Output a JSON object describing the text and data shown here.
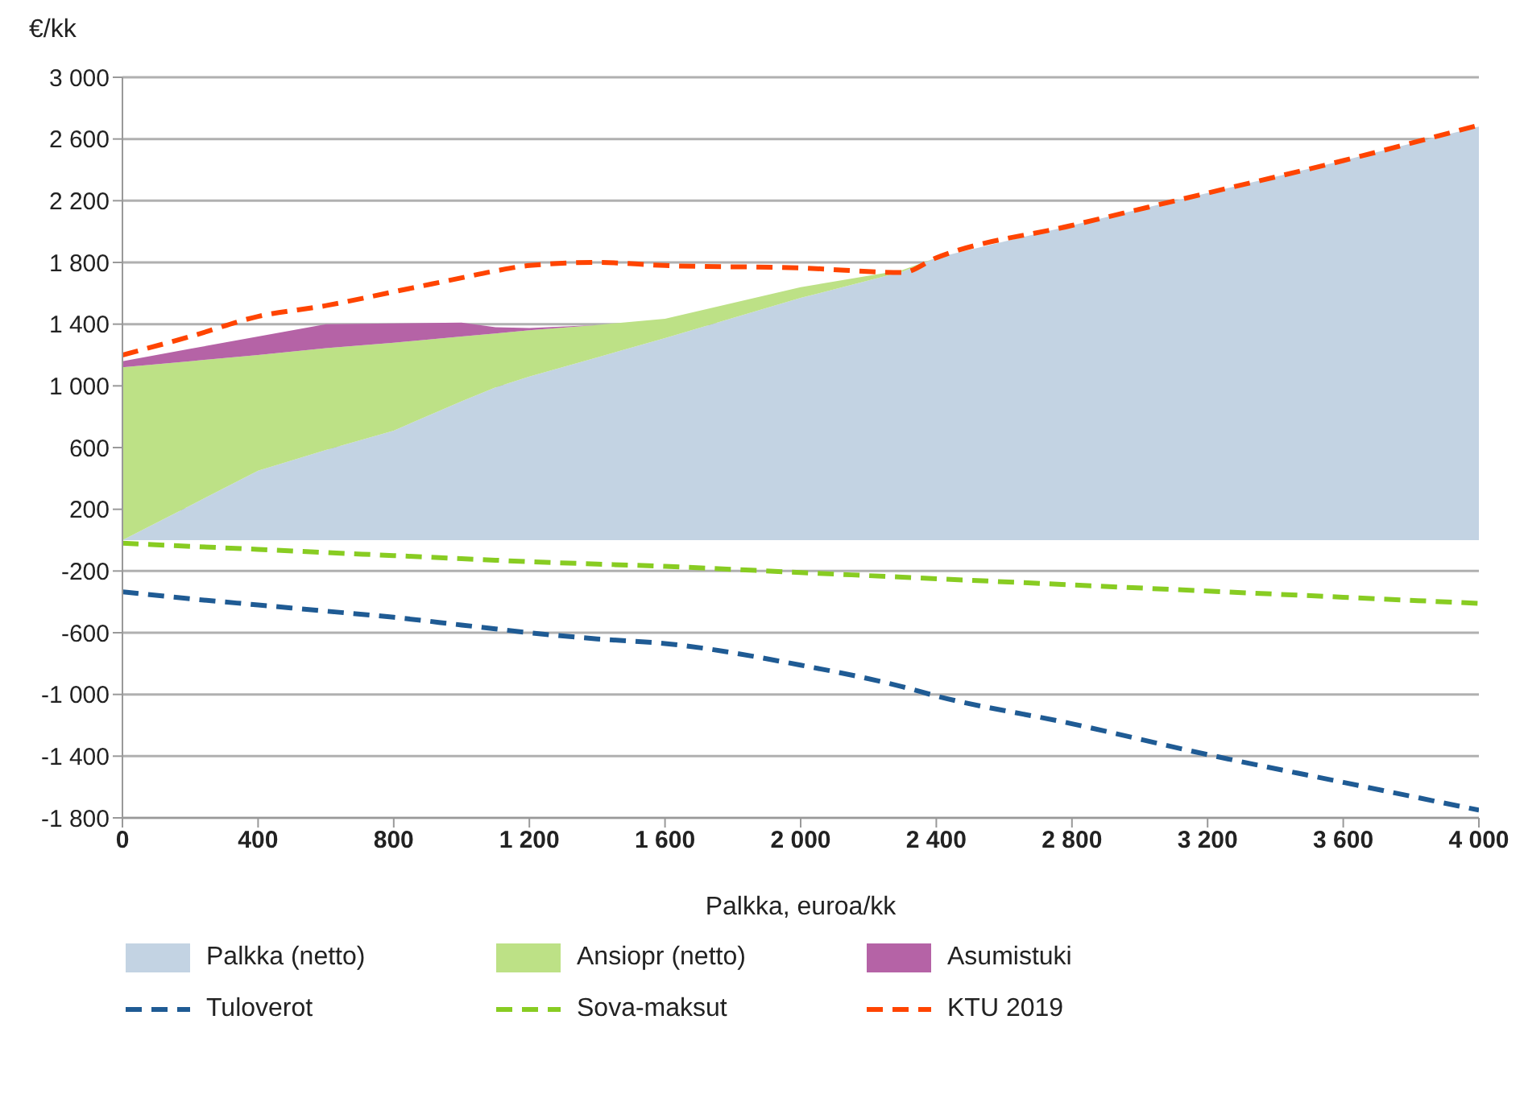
{
  "chart_data": {
    "type": "area",
    "ylabel": "€/kk",
    "xlabel": "Palkka, euroa/kk",
    "stacked": true,
    "grid": "y",
    "legend": "bottom",
    "x": [
      0,
      200,
      400,
      600,
      800,
      1000,
      1100,
      1200,
      1400,
      1600,
      2000,
      2300,
      2400,
      2800,
      3200,
      3600,
      4000
    ],
    "series": [
      {
        "name": "Palkka (netto)",
        "color": "#c3d3e3",
        "values": [
          0,
          225,
          450,
          585,
          710,
          900,
          990,
          1060,
          1185,
          1310,
          1570,
          1740,
          1830,
          2040,
          2250,
          2460,
          2680
        ]
      },
      {
        "name": "Ansiopr (netto)",
        "color": "#bde186",
        "values": [
          1120,
          935,
          750,
          660,
          570,
          420,
          350,
          300,
          210,
          125,
          70,
          10,
          0,
          null,
          null,
          null,
          null
        ]
      },
      {
        "name": "Asumistuki",
        "color": "#b563a6",
        "values": [
          40,
          80,
          120,
          155,
          125,
          90,
          40,
          15,
          0,
          null,
          null,
          null,
          null,
          null,
          null,
          null,
          null
        ]
      },
      {
        "name": "Tuloverot",
        "type": "line",
        "line_style": "dashed",
        "color": "#1f5b94",
        "values": [
          -335,
          -380,
          -420,
          -460,
          -500,
          -550,
          -575,
          -600,
          -640,
          -670,
          -810,
          -950,
          -1010,
          -1190,
          -1390,
          -1570,
          -1750
        ]
      },
      {
        "name": "Sova-maksut",
        "type": "line",
        "line_style": "dashed",
        "color": "#88cc22",
        "values": [
          -20,
          -40,
          -60,
          -80,
          -100,
          -120,
          -130,
          -140,
          -155,
          -170,
          -210,
          -240,
          -250,
          -290,
          -330,
          -370,
          -410
        ]
      },
      {
        "name": "KTU 2019",
        "type": "line",
        "line_style": "dashed",
        "color": "#ff4400",
        "values": [
          1200,
          1320,
          1450,
          1520,
          1610,
          1700,
          1745,
          1780,
          1800,
          1780,
          1764,
          1735,
          1830,
          2040,
          2250,
          2460,
          2690
        ]
      }
    ],
    "xlim": [
      0,
      4000
    ],
    "xticks": [
      0,
      400,
      800,
      {
        "value": 1200,
        "label": "1 200"
      },
      {
        "value": 1600,
        "label": "1 600"
      },
      {
        "value": 2000,
        "label": "2 000"
      },
      {
        "value": 2400,
        "label": "2 400"
      },
      {
        "value": 2800,
        "label": "2 800"
      },
      {
        "value": 3200,
        "label": "3 200"
      },
      {
        "value": 3600,
        "label": "3 600"
      },
      {
        "value": 4000,
        "label": "4 000"
      }
    ],
    "ylim": [
      -1800,
      3000
    ],
    "yticks": [
      {
        "value": -1800,
        "label": "-1 800"
      },
      {
        "value": -1400,
        "label": "-1 400"
      },
      {
        "value": -1000,
        "label": "-1 000"
      },
      -600,
      -200,
      200,
      600,
      {
        "value": 1000,
        "label": "1 000"
      },
      {
        "value": 1400,
        "label": "1 400"
      },
      {
        "value": 1800,
        "label": "1 800"
      },
      {
        "value": 2200,
        "label": "2 200"
      },
      {
        "value": 2600,
        "label": "2 600"
      },
      {
        "value": 3000,
        "label": "3 000"
      }
    ]
  }
}
